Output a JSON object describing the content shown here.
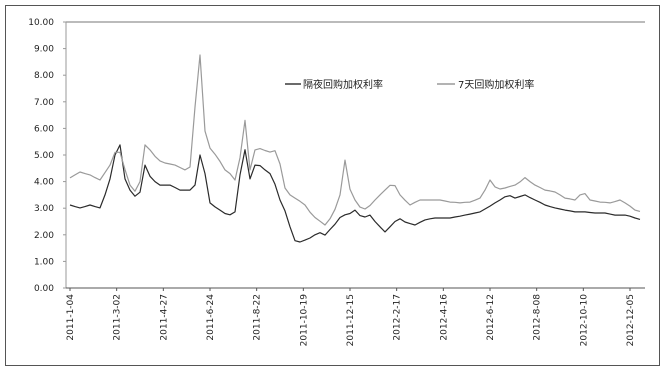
{
  "chart_data": {
    "type": "line",
    "title": "",
    "xlabel": "",
    "ylabel": "",
    "ylim": [
      0,
      10
    ],
    "y_ticks": [
      "0.00",
      "1.00",
      "2.00",
      "3.00",
      "4.00",
      "5.00",
      "6.00",
      "7.00",
      "8.00",
      "9.00",
      "10.00"
    ],
    "x_tick_labels": [
      "2011-1-04",
      "2011-3-02",
      "2011-4-27",
      "2011-6-24",
      "2011-8-22",
      "2011-10-19",
      "2011-12-15",
      "2012-2-17",
      "2012-4-16",
      "2012-6-12",
      "2012-8-08",
      "2012-10-10",
      "2012-12-05"
    ],
    "grid": false,
    "legend_position": "top-center",
    "series": [
      {
        "name": "隔夜回购加权利率",
        "color": "#2b2b2b",
        "values": [
          3.12,
          3.06,
          3.01,
          3.06,
          3.12,
          3.06,
          3.01,
          3.5,
          4.1,
          5.0,
          5.38,
          4.1,
          3.68,
          3.45,
          3.6,
          4.62,
          4.2,
          4.0,
          3.87,
          3.87,
          3.87,
          3.78,
          3.68,
          3.68,
          3.68,
          3.87,
          5.0,
          4.3,
          3.2,
          3.05,
          2.93,
          2.8,
          2.75,
          2.86,
          4.25,
          5.2,
          4.1,
          4.62,
          4.6,
          4.44,
          4.3,
          3.9,
          3.31,
          2.9,
          2.3,
          1.78,
          1.73,
          1.8,
          1.88,
          2.0,
          2.08,
          1.99,
          2.2,
          2.4,
          2.65,
          2.75,
          2.8,
          2.93,
          2.72,
          2.67,
          2.74,
          2.5,
          2.3,
          2.11,
          2.3,
          2.5,
          2.6,
          2.48,
          2.42,
          2.37,
          2.47,
          2.56,
          2.6,
          2.63,
          2.63,
          2.63,
          2.63,
          2.67,
          2.7,
          2.74,
          2.78,
          2.82,
          2.86,
          2.97,
          3.08,
          3.2,
          3.31,
          3.43,
          3.47,
          3.38,
          3.44,
          3.5,
          3.4,
          3.31,
          3.22,
          3.12,
          3.06,
          3.01,
          2.97,
          2.93,
          2.9,
          2.86,
          2.86,
          2.86,
          2.84,
          2.82,
          2.82,
          2.82,
          2.78,
          2.74,
          2.74,
          2.74,
          2.7,
          2.63,
          2.58
        ]
      },
      {
        "name": "7天回购加权利率",
        "color": "#9a9a9a",
        "values": [
          4.14,
          4.25,
          4.36,
          4.3,
          4.25,
          4.15,
          4.06,
          4.34,
          4.62,
          5.1,
          5.1,
          4.45,
          3.87,
          3.64,
          4.0,
          5.38,
          5.19,
          4.95,
          4.78,
          4.7,
          4.66,
          4.62,
          4.53,
          4.44,
          4.55,
          6.8,
          8.76,
          5.9,
          5.26,
          5.03,
          4.76,
          4.44,
          4.3,
          4.06,
          4.9,
          6.3,
          4.44,
          5.19,
          5.24,
          5.17,
          5.11,
          5.16,
          4.66,
          3.76,
          3.5,
          3.38,
          3.26,
          3.12,
          2.85,
          2.65,
          2.51,
          2.37,
          2.6,
          2.96,
          3.5,
          4.81,
          3.71,
          3.31,
          3.04,
          2.97,
          3.1,
          3.31,
          3.5,
          3.68,
          3.86,
          3.85,
          3.5,
          3.3,
          3.12,
          3.22,
          3.31,
          3.31,
          3.31,
          3.31,
          3.31,
          3.27,
          3.23,
          3.22,
          3.2,
          3.22,
          3.23,
          3.3,
          3.38,
          3.68,
          4.06,
          3.8,
          3.72,
          3.76,
          3.82,
          3.87,
          3.99,
          4.15,
          4.0,
          3.87,
          3.78,
          3.68,
          3.65,
          3.61,
          3.5,
          3.38,
          3.35,
          3.31,
          3.5,
          3.55,
          3.31,
          3.27,
          3.23,
          3.22,
          3.2,
          3.25,
          3.31,
          3.2,
          3.08,
          2.93,
          2.88
        ]
      }
    ]
  }
}
